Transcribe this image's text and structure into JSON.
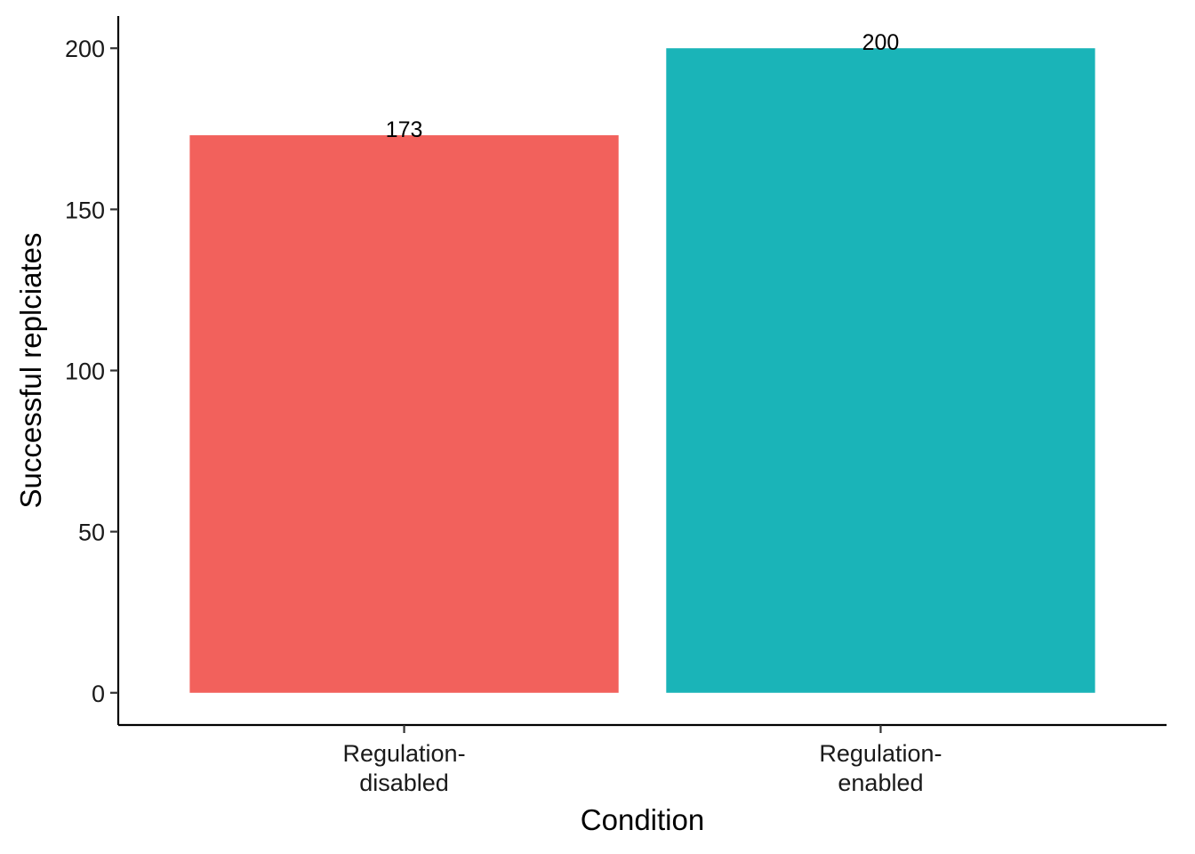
{
  "chart_data": {
    "type": "bar",
    "categories": [
      [
        "Regulation-",
        "disabled"
      ],
      [
        "Regulation-",
        "enabled"
      ]
    ],
    "values": [
      173,
      200
    ],
    "data_labels": [
      "173",
      "200"
    ],
    "colors": [
      "#F2615C",
      "#1AB4B8"
    ],
    "xlabel": "Condition",
    "ylabel": "Successful replciates",
    "ylim": [
      -10,
      210
    ],
    "yticks": [
      0,
      50,
      100,
      150,
      200
    ],
    "ytick_labels": [
      "0",
      "50",
      "100",
      "150",
      "200"
    ],
    "grid": false,
    "legend": "none"
  }
}
